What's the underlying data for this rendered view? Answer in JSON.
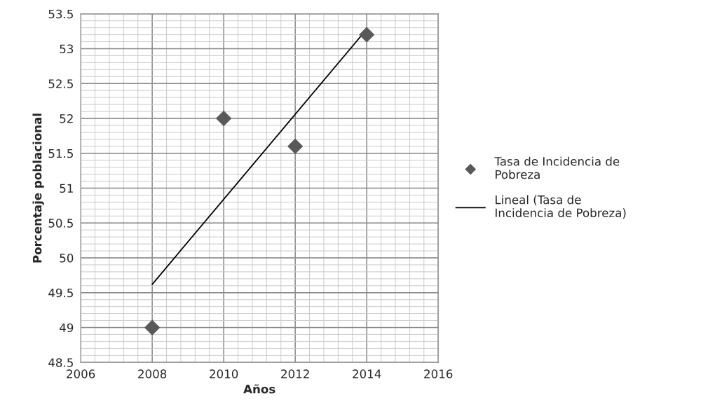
{
  "chart_data": {
    "type": "scatter",
    "xlabel": "Años",
    "ylabel": "Porcentaje poblacional",
    "series": [
      {
        "name": "Tasa de Incidencia de Pobreza",
        "color": "#595959",
        "marker": "diamond",
        "x": [
          2008,
          2010,
          2012,
          2014
        ],
        "values": [
          49,
          52,
          51.6,
          53.2
        ]
      },
      {
        "name": "Lineal (Tasa de Incidencia de Pobreza)",
        "type": "line",
        "color": "#000000",
        "marker": "none",
        "line_style": "solid",
        "x": [
          2008,
          2014
        ],
        "values": [
          49.62,
          53.28
        ]
      }
    ],
    "xlim": [
      2006,
      2016
    ],
    "xticks": [
      2006,
      2008,
      2010,
      2012,
      2014,
      2016
    ],
    "ylim": [
      48.5,
      53.5
    ],
    "yticks": [
      48.5,
      49,
      49.5,
      50,
      50.5,
      51,
      51.5,
      52,
      52.5,
      53,
      53.5
    ],
    "grid": true,
    "legend": "right"
  }
}
